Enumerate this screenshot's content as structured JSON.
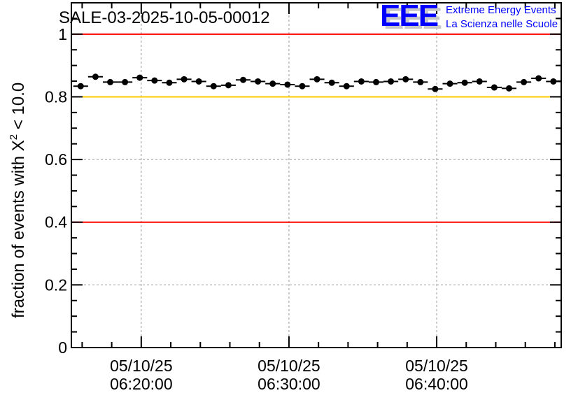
{
  "chart_data": {
    "type": "scatter",
    "title": "SALE-03-2025-10-05-00012",
    "xlabel": "",
    "ylabel": "fraction of events with",
    "ylabel_symbol": "X",
    "ylabel_exponent": "2",
    "ylabel_suffix": "< 10.0",
    "x_unit": "minutes after 06:00 on 05/10/25",
    "xlim": [
      15.27,
      48.43
    ],
    "ylim": [
      0,
      1.1
    ],
    "y_ticks": [
      0,
      0.2,
      0.4,
      0.6,
      0.8,
      1
    ],
    "y_tick_labels": [
      "0",
      "0.2",
      "0.4",
      "0.6",
      "0.8",
      "1"
    ],
    "x_ticks": [
      20,
      30,
      40
    ],
    "x_tick_labels": [
      {
        "date": "05/10/25",
        "time": "06:20:00"
      },
      {
        "date": "05/10/25",
        "time": "06:30:00"
      },
      {
        "date": "05/10/25",
        "time": "06:40:00"
      }
    ],
    "grid": true,
    "reference_lines": [
      {
        "y": 1.0,
        "color": "#ff0000"
      },
      {
        "y": 0.8,
        "color": "#ffcc00"
      },
      {
        "y": 0.4,
        "color": "#ff0000"
      }
    ],
    "bin_width": 1,
    "x": [
      15.9,
      16.9,
      17.9,
      18.9,
      19.9,
      20.9,
      21.9,
      22.9,
      23.9,
      24.9,
      25.9,
      26.9,
      27.9,
      28.9,
      29.9,
      30.9,
      31.9,
      32.9,
      33.9,
      34.9,
      35.9,
      36.9,
      37.9,
      38.9,
      39.9,
      40.9,
      41.9,
      42.9,
      43.9,
      44.9,
      45.9,
      46.9,
      47.9
    ],
    "values": [
      0.834,
      0.864,
      0.847,
      0.847,
      0.861,
      0.852,
      0.845,
      0.856,
      0.849,
      0.834,
      0.837,
      0.854,
      0.849,
      0.842,
      0.839,
      0.834,
      0.856,
      0.845,
      0.834,
      0.849,
      0.847,
      0.849,
      0.856,
      0.847,
      0.825,
      0.842,
      0.845,
      0.849,
      0.83,
      0.827,
      0.847,
      0.859,
      0.849
    ]
  },
  "logo": {
    "mark": "EEE",
    "line1": "Extreme Energy Events",
    "line2": "La Scienza nelle Scuole"
  }
}
